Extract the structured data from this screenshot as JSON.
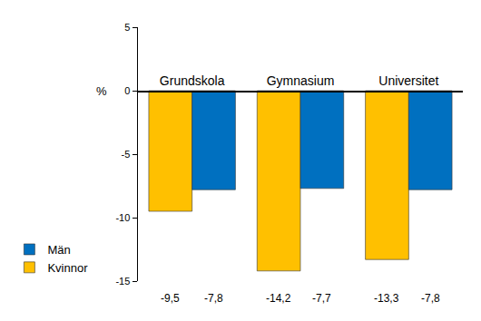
{
  "chart_data": {
    "type": "bar",
    "categories": [
      "Grundskola",
      "Gymnasium",
      "Universitet"
    ],
    "series": [
      {
        "name": "Kvinnor",
        "color": "#FFC000",
        "values": [
          -9.5,
          -14.2,
          -13.3
        ],
        "value_labels": [
          "-9,5",
          "-14,2",
          "-13,3"
        ]
      },
      {
        "name": "Män",
        "color": "#0070C0",
        "values": [
          -7.8,
          -7.7,
          -7.8
        ],
        "value_labels": [
          "-7,8",
          "-7,7",
          "-7,8"
        ]
      }
    ],
    "ylabel": "%",
    "ylim": [
      -15,
      5
    ],
    "yticks": [
      -15,
      -10,
      -5,
      0,
      5
    ],
    "grid": false,
    "legend": "lower left",
    "data_labels": true
  }
}
